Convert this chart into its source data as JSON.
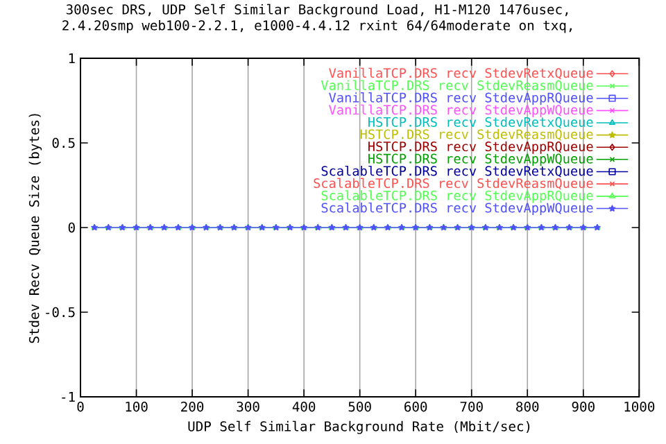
{
  "chart_data": {
    "type": "line",
    "title": "300sec DRS, UDP Self Similar Background Load, H1-M120 1476usec,",
    "subtitle": "2.4.20smp web100-2.2.1, e1000-4.4.12 rxint 64/64moderate on txq,",
    "xlabel": "UDP Self Similar Background Rate (Mbit/sec)",
    "ylabel": "Stdev Recv Queue Size (bytes)",
    "x": [
      25,
      50,
      75,
      100,
      125,
      150,
      175,
      200,
      225,
      250,
      275,
      300,
      325,
      350,
      375,
      400,
      425,
      450,
      475,
      500,
      525,
      550,
      575,
      600,
      625,
      650,
      675,
      700,
      725,
      750,
      775,
      800,
      825,
      850,
      875,
      900,
      925
    ],
    "xlim": [
      0,
      1000
    ],
    "xticks": [
      0,
      100,
      200,
      300,
      400,
      500,
      600,
      700,
      800,
      900,
      1000
    ],
    "ylim": [
      -1,
      1
    ],
    "yticks": [
      -1,
      -0.5,
      0,
      0.5,
      1
    ],
    "grid": "x",
    "legend": "top right",
    "line_style": "solid",
    "series": [
      {
        "name": "VanillaTCP.DRS recv StdevRetxQueue",
        "color": "#ff5050",
        "marker": "diamond",
        "values": [
          null,
          null,
          null,
          null,
          null,
          null,
          null,
          null,
          null,
          null,
          null,
          null,
          null,
          null,
          null,
          null,
          null,
          null,
          null,
          null,
          null,
          null,
          null,
          null,
          null,
          null,
          null,
          null,
          null,
          null,
          null,
          null,
          null,
          null,
          null,
          null,
          null
        ]
      },
      {
        "name": "VanillaTCP.DRS recv StdevReasmQueue",
        "color": "#50ff50",
        "marker": "cross",
        "values": [
          null,
          null,
          null,
          null,
          null,
          null,
          null,
          null,
          null,
          null,
          null,
          null,
          null,
          null,
          null,
          null,
          null,
          null,
          null,
          null,
          null,
          null,
          null,
          null,
          null,
          null,
          null,
          null,
          null,
          null,
          null,
          null,
          null,
          null,
          null,
          null,
          null
        ]
      },
      {
        "name": "VanillaTCP.DRS recv StdevAppRQueue",
        "color": "#5050ff",
        "marker": "square",
        "values": [
          null,
          null,
          null,
          null,
          null,
          null,
          null,
          null,
          null,
          null,
          null,
          null,
          null,
          null,
          null,
          null,
          null,
          null,
          null,
          null,
          null,
          null,
          null,
          null,
          null,
          null,
          null,
          null,
          null,
          null,
          null,
          null,
          null,
          null,
          null,
          null,
          null
        ]
      },
      {
        "name": "VanillaTCP.DRS recv StdevAppWQueue",
        "color": "#ff50ff",
        "marker": "cross",
        "values": [
          null,
          null,
          null,
          null,
          null,
          null,
          null,
          null,
          null,
          null,
          null,
          null,
          null,
          null,
          null,
          null,
          null,
          null,
          null,
          null,
          null,
          null,
          null,
          null,
          null,
          null,
          null,
          null,
          null,
          null,
          null,
          null,
          null,
          null,
          null,
          null,
          null
        ]
      },
      {
        "name": "HSTCP.DRS recv StdevRetxQueue",
        "color": "#00bebe",
        "marker": "triangle",
        "values": [
          null,
          null,
          null,
          null,
          null,
          null,
          null,
          null,
          null,
          null,
          null,
          null,
          null,
          null,
          null,
          null,
          null,
          null,
          null,
          null,
          null,
          null,
          null,
          null,
          null,
          null,
          null,
          null,
          null,
          null,
          null,
          null,
          null,
          null,
          null,
          null,
          null
        ]
      },
      {
        "name": "HSTCP.DRS recv StdevReasmQueue",
        "color": "#bebe00",
        "marker": "star",
        "values": [
          null,
          null,
          null,
          null,
          null,
          null,
          null,
          null,
          null,
          null,
          null,
          null,
          null,
          null,
          null,
          null,
          null,
          null,
          null,
          null,
          null,
          null,
          null,
          null,
          null,
          null,
          null,
          null,
          null,
          null,
          null,
          null,
          null,
          null,
          null,
          null,
          null
        ]
      },
      {
        "name": "HSTCP.DRS recv StdevAppRQueue",
        "color": "#a00000",
        "marker": "diamond",
        "values": [
          null,
          null,
          null,
          null,
          null,
          null,
          null,
          null,
          null,
          null,
          null,
          null,
          null,
          null,
          null,
          null,
          null,
          null,
          null,
          null,
          null,
          null,
          null,
          null,
          null,
          null,
          null,
          null,
          null,
          null,
          null,
          null,
          null,
          null,
          null,
          null,
          null
        ]
      },
      {
        "name": "HSTCP.DRS recv StdevAppWQueue",
        "color": "#00a000",
        "marker": "cross",
        "values": [
          null,
          null,
          null,
          null,
          null,
          null,
          null,
          null,
          null,
          null,
          null,
          null,
          null,
          null,
          null,
          null,
          null,
          null,
          null,
          null,
          null,
          null,
          null,
          null,
          null,
          null,
          null,
          null,
          null,
          null,
          null,
          null,
          null,
          null,
          null,
          null,
          null
        ]
      },
      {
        "name": "ScalableTCP.DRS recv StdevRetxQueue",
        "color": "#0000a0",
        "marker": "square",
        "values": [
          null,
          null,
          null,
          null,
          null,
          null,
          null,
          null,
          null,
          null,
          null,
          null,
          null,
          null,
          null,
          null,
          null,
          null,
          null,
          null,
          null,
          null,
          null,
          null,
          null,
          null,
          null,
          null,
          null,
          null,
          null,
          null,
          null,
          null,
          null,
          null,
          null
        ]
      },
      {
        "name": "ScalableTCP.DRS recv StdevReasmQueue",
        "color": "#ff5050",
        "marker": "cross",
        "values": [
          null,
          null,
          null,
          null,
          null,
          null,
          null,
          null,
          null,
          null,
          null,
          null,
          null,
          null,
          null,
          null,
          null,
          null,
          null,
          null,
          null,
          null,
          null,
          null,
          null,
          null,
          null,
          null,
          null,
          null,
          null,
          null,
          null,
          null,
          null,
          null,
          null
        ]
      },
      {
        "name": "ScalableTCP.DRS recv StdevAppRQueue",
        "color": "#50ff50",
        "marker": "triangle",
        "values": [
          0,
          0,
          0,
          0,
          0,
          0,
          0,
          0,
          0,
          0,
          0,
          0,
          0,
          0,
          0,
          0,
          0,
          0,
          0,
          0,
          0,
          0,
          0,
          0,
          0,
          0,
          0,
          0,
          0,
          0,
          0,
          0,
          0,
          0,
          0,
          0,
          0
        ]
      },
      {
        "name": "ScalableTCP.DRS recv StdevAppWQueue",
        "color": "#5050ff",
        "marker": "star",
        "values": [
          0,
          0,
          0,
          0,
          0,
          0,
          0,
          0,
          0,
          0,
          0,
          0,
          0,
          0,
          0,
          0,
          0,
          0,
          0,
          0,
          0,
          0,
          0,
          0,
          0,
          0,
          0,
          0,
          0,
          0,
          0,
          0,
          0,
          0,
          0,
          0,
          0
        ]
      }
    ]
  }
}
